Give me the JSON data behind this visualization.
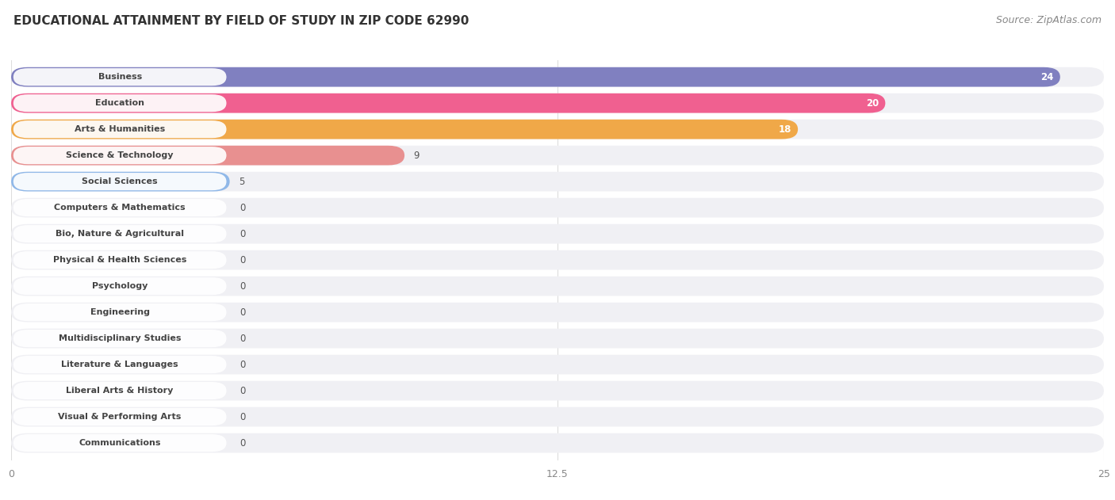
{
  "title": "EDUCATIONAL ATTAINMENT BY FIELD OF STUDY IN ZIP CODE 62990",
  "source": "Source: ZipAtlas.com",
  "categories": [
    "Business",
    "Education",
    "Arts & Humanities",
    "Science & Technology",
    "Social Sciences",
    "Computers & Mathematics",
    "Bio, Nature & Agricultural",
    "Physical & Health Sciences",
    "Psychology",
    "Engineering",
    "Multidisciplinary Studies",
    "Literature & Languages",
    "Liberal Arts & History",
    "Visual & Performing Arts",
    "Communications"
  ],
  "values": [
    24,
    20,
    18,
    9,
    5,
    0,
    0,
    0,
    0,
    0,
    0,
    0,
    0,
    0,
    0
  ],
  "bar_colors": [
    "#8080c0",
    "#f06090",
    "#f0a848",
    "#e89090",
    "#90b8e8",
    "#c8a0d0",
    "#60c0b8",
    "#a0b0d8",
    "#f090a8",
    "#f0c080",
    "#f09898",
    "#90b8e8",
    "#c0a8d8",
    "#60c8c0",
    "#a0b8e8"
  ],
  "pill_bg_colors": [
    "#e8e8f4",
    "#fde8f0",
    "#fdeedd",
    "#fce8e8",
    "#e4eff8",
    "#f2e8f8",
    "#e0f4f2",
    "#eaeef8",
    "#fde8ee",
    "#fdf0e0",
    "#fce8e8",
    "#e4eff8",
    "#f0eaf8",
    "#e0f4f2",
    "#e4eff8"
  ],
  "label_colors": [
    "#7070b8",
    "#e05080",
    "#e09030",
    "#d07070",
    "#6090d0",
    "#a070b8",
    "#30a098",
    "#7090b8",
    "#e06080",
    "#e09830",
    "#d07070",
    "#6090d0",
    "#9070b8",
    "#30a098",
    "#7090b8"
  ],
  "xlim": [
    0,
    25
  ],
  "xticks": [
    0,
    12.5,
    25
  ],
  "background_color": "#ffffff",
  "row_sep_color": "#e8e8e8",
  "title_fontsize": 11,
  "source_fontsize": 9
}
